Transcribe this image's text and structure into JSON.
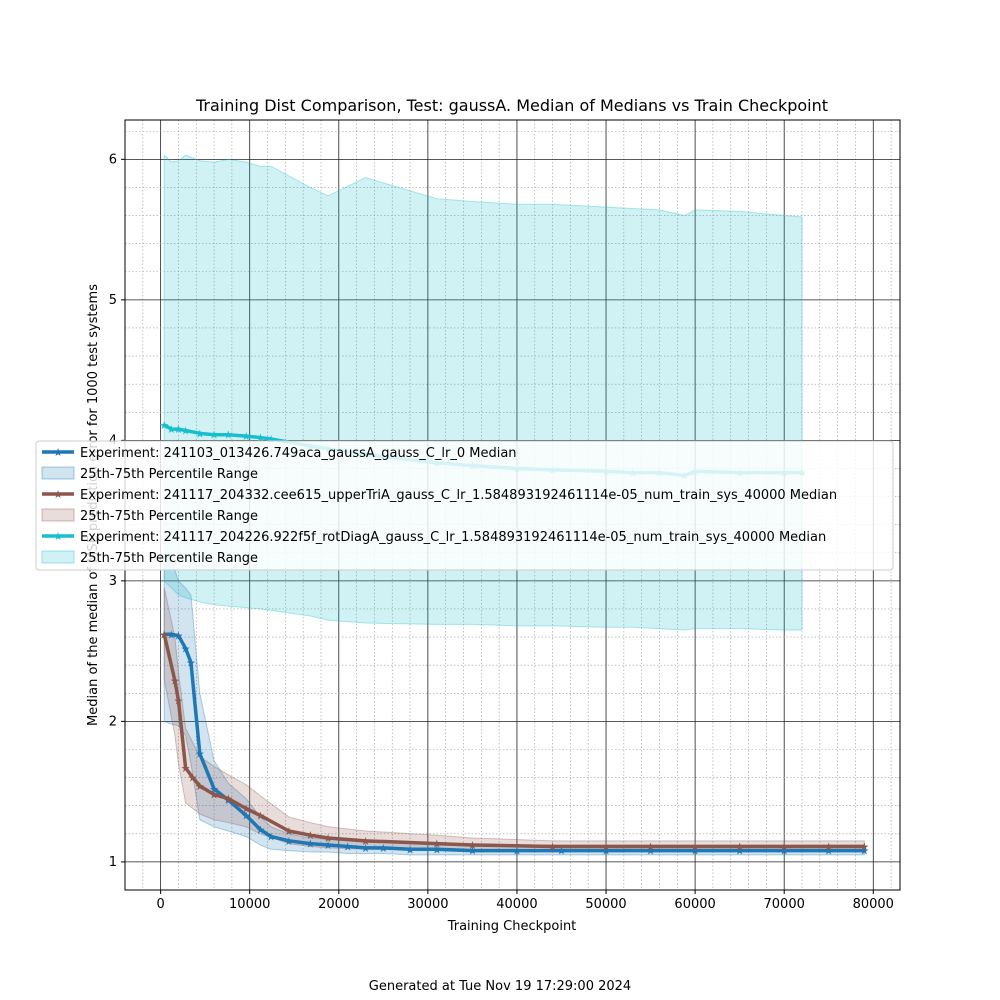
{
  "chart_data": {
    "type": "line",
    "title": "Training Dist Comparison, Test: gaussA. Median of Medians vs Train Checkpoint",
    "xlabel": "Training Checkpoint",
    "ylabel": "Median of the median of MSE prediction error for 1000 test systems",
    "xlim": [
      -4000,
      83000
    ],
    "ylim": [
      0.8,
      6.28
    ],
    "xticks": [
      0,
      10000,
      20000,
      30000,
      40000,
      50000,
      60000,
      70000,
      80000
    ],
    "xtick_labels": [
      "0",
      "10000",
      "20000",
      "30000",
      "40000",
      "50000",
      "60000",
      "70000",
      "80000"
    ],
    "yticks": [
      1,
      2,
      3,
      4,
      5,
      6
    ],
    "ytick_labels": [
      "1",
      "2",
      "3",
      "4",
      "5",
      "6"
    ],
    "grid": true,
    "legend_position": "center-left",
    "series": [
      {
        "name": "Experiment: 241103_013426.749aca_gaussA_gauss_C_lr_0 Median",
        "band_name": "25th-75th Percentile Range",
        "color": "#1f77b4",
        "x": [
          400,
          1200,
          2000,
          2800,
          3400,
          4400,
          6000,
          7600,
          9600,
          11200,
          12400,
          14400,
          16800,
          18800,
          21000,
          23000,
          25000,
          28000,
          31000,
          35000,
          40000,
          45000,
          50000,
          55000,
          60000,
          65000,
          70000,
          75000,
          79000
        ],
        "values": [
          2.62,
          2.62,
          2.61,
          2.52,
          2.42,
          1.77,
          1.52,
          1.44,
          1.33,
          1.23,
          1.18,
          1.15,
          1.13,
          1.12,
          1.11,
          1.1,
          1.1,
          1.09,
          1.09,
          1.08,
          1.08,
          1.08,
          1.08,
          1.08,
          1.08,
          1.08,
          1.08,
          1.08,
          1.08
        ],
        "lower": [
          2.0,
          1.98,
          1.97,
          1.9,
          1.7,
          1.3,
          1.25,
          1.22,
          1.18,
          1.12,
          1.09,
          1.08,
          1.07,
          1.07,
          1.06,
          1.06,
          1.06,
          1.05,
          1.05,
          1.05,
          1.05,
          1.05,
          1.05,
          1.05,
          1.05,
          1.05,
          1.05,
          1.05,
          1.05
        ],
        "upper": [
          3.2,
          3.15,
          3.0,
          2.95,
          2.9,
          2.2,
          1.72,
          1.56,
          1.45,
          1.32,
          1.25,
          1.2,
          1.17,
          1.16,
          1.15,
          1.14,
          1.14,
          1.13,
          1.13,
          1.12,
          1.12,
          1.12,
          1.12,
          1.12,
          1.12,
          1.12,
          1.12,
          1.12,
          1.12
        ]
      },
      {
        "name": "Experiment: 241117_204332.cee615_upperTriA_gauss_C_lr_1.584893192461114e-05_num_train_sys_40000 Median",
        "band_name": "25th-75th Percentile Range",
        "color": "#8c564b",
        "x": [
          400,
          1600,
          2000,
          2800,
          3600,
          4400,
          6000,
          7600,
          9600,
          11200,
          14400,
          16800,
          18800,
          23000,
          31000,
          35000,
          44000,
          50000,
          55000,
          60000,
          65000,
          70000,
          75000,
          79000
        ],
        "values": [
          2.62,
          2.29,
          2.15,
          1.67,
          1.6,
          1.54,
          1.48,
          1.45,
          1.38,
          1.33,
          1.22,
          1.19,
          1.17,
          1.15,
          1.13,
          1.12,
          1.11,
          1.11,
          1.11,
          1.11,
          1.11,
          1.11,
          1.11,
          1.11
        ],
        "lower": [
          2.3,
          1.9,
          1.7,
          1.42,
          1.38,
          1.34,
          1.3,
          1.28,
          1.25,
          1.2,
          1.13,
          1.11,
          1.1,
          1.09,
          1.08,
          1.08,
          1.08,
          1.08,
          1.08,
          1.08,
          1.08,
          1.08,
          1.08,
          1.08
        ],
        "upper": [
          2.95,
          2.6,
          2.35,
          1.95,
          1.85,
          1.75,
          1.68,
          1.62,
          1.55,
          1.47,
          1.32,
          1.28,
          1.25,
          1.22,
          1.19,
          1.17,
          1.15,
          1.15,
          1.15,
          1.15,
          1.15,
          1.15,
          1.15,
          1.15
        ]
      },
      {
        "name": "Experiment: 241117_204226.922f5f_rotDiagA_gauss_C_lr_1.584893192461114e-05_num_train_sys_40000 Median",
        "band_name": "25th-75th Percentile Range",
        "color": "#17becf",
        "x": [
          400,
          1200,
          2000,
          2800,
          4400,
          6000,
          7600,
          9600,
          11200,
          12400,
          16800,
          18800,
          23000,
          31000,
          35000,
          40000,
          44000,
          50000,
          53000,
          56000,
          58800,
          60000,
          65000,
          70000,
          72000
        ],
        "values": [
          4.11,
          4.08,
          4.08,
          4.07,
          4.05,
          4.04,
          4.04,
          4.03,
          4.02,
          4.01,
          3.96,
          3.94,
          3.9,
          3.84,
          3.82,
          3.8,
          3.79,
          3.78,
          3.77,
          3.77,
          3.75,
          3.78,
          3.77,
          3.77,
          3.77
        ],
        "lower": [
          3.0,
          2.95,
          2.9,
          2.88,
          2.85,
          2.83,
          2.82,
          2.81,
          2.8,
          2.79,
          2.75,
          2.72,
          2.7,
          2.69,
          2.69,
          2.68,
          2.68,
          2.67,
          2.67,
          2.66,
          2.65,
          2.66,
          2.66,
          2.65,
          2.65
        ],
        "upper": [
          6.03,
          5.98,
          5.99,
          6.03,
          5.99,
          5.98,
          6.0,
          5.98,
          5.95,
          5.95,
          5.8,
          5.74,
          5.87,
          5.72,
          5.7,
          5.68,
          5.68,
          5.66,
          5.65,
          5.64,
          5.6,
          5.64,
          5.63,
          5.6,
          5.59
        ]
      }
    ]
  },
  "footer": {
    "generated_text": "Generated at Tue Nov 19 17:29:00 2024"
  }
}
